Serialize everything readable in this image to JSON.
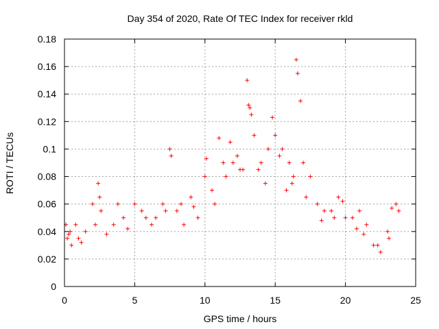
{
  "chart_data": {
    "type": "scatter",
    "title": "Day 354 of 2020, Rate Of TEC Index for receiver rkld",
    "xlabel": "GPS time / hours",
    "ylabel": "ROTI / TECUs",
    "xlim": [
      0,
      25
    ],
    "ylim": [
      0,
      0.18
    ],
    "x_ticks": [
      0,
      5,
      10,
      15,
      20,
      25
    ],
    "x_tick_labels": [
      "0",
      "5",
      "10",
      "15",
      "20",
      "25"
    ],
    "y_ticks": [
      0,
      0.02,
      0.04,
      0.06,
      0.08,
      0.1,
      0.12,
      0.14,
      0.16,
      0.18
    ],
    "y_tick_labels": [
      "0",
      "0.02",
      "0.04",
      "0.06",
      "0.08",
      "0.1",
      "0.12",
      "0.14",
      "0.16",
      "0.18"
    ],
    "grid": true,
    "marker": "+",
    "color": "#ff0000",
    "series": [
      {
        "name": "ROTI",
        "x": [
          0.1,
          0.2,
          0.4,
          0.5,
          0.8,
          1.0,
          1.5,
          2.0,
          2.4,
          2.5,
          2.6,
          3.5,
          3.8,
          4.2,
          5.0,
          5.5,
          6.5,
          7.0,
          7.5,
          7.6,
          8.0,
          8.5,
          9.0,
          9.5,
          10.0,
          10.1,
          10.5,
          11.0,
          11.3,
          11.5,
          11.8,
          12.0,
          12.3,
          12.5,
          13.0,
          13.1,
          13.2,
          13.3,
          13.5,
          14.0,
          14.5,
          14.8,
          15.0,
          15.3,
          15.5,
          16.0,
          16.3,
          16.5,
          16.6,
          16.8,
          17.0,
          17.5,
          18.0,
          18.5,
          19.0,
          19.5,
          19.8,
          20.0,
          20.5,
          21.0,
          21.5,
          22.0,
          22.5,
          23.0,
          23.3,
          23.6,
          23.8,
          0.3,
          1.2,
          2.2,
          3.0,
          4.5,
          5.8,
          6.2,
          7.2,
          8.3,
          9.2,
          10.7,
          12.7,
          13.8,
          14.3,
          15.8,
          16.2,
          17.2,
          18.3,
          19.2,
          20.8,
          21.3,
          22.3,
          23.1
        ],
        "y": [
          0.045,
          0.035,
          0.04,
          0.03,
          0.045,
          0.035,
          0.04,
          0.06,
          0.075,
          0.065,
          0.055,
          0.045,
          0.06,
          0.05,
          0.06,
          0.055,
          0.05,
          0.06,
          0.1,
          0.095,
          0.055,
          0.045,
          0.065,
          0.05,
          0.08,
          0.093,
          0.07,
          0.108,
          0.09,
          0.08,
          0.105,
          0.09,
          0.095,
          0.085,
          0.15,
          0.132,
          0.13,
          0.125,
          0.11,
          0.09,
          0.1,
          0.123,
          0.11,
          0.095,
          0.1,
          0.09,
          0.08,
          0.165,
          0.155,
          0.135,
          0.09,
          0.08,
          0.06,
          0.055,
          0.055,
          0.065,
          0.062,
          0.05,
          0.05,
          0.055,
          0.045,
          0.03,
          0.025,
          0.04,
          0.057,
          0.06,
          0.055,
          0.038,
          0.032,
          0.045,
          0.038,
          0.042,
          0.05,
          0.045,
          0.055,
          0.06,
          0.058,
          0.06,
          0.085,
          0.085,
          0.075,
          0.07,
          0.075,
          0.065,
          0.048,
          0.05,
          0.042,
          0.038,
          0.03,
          0.035
        ]
      }
    ]
  }
}
